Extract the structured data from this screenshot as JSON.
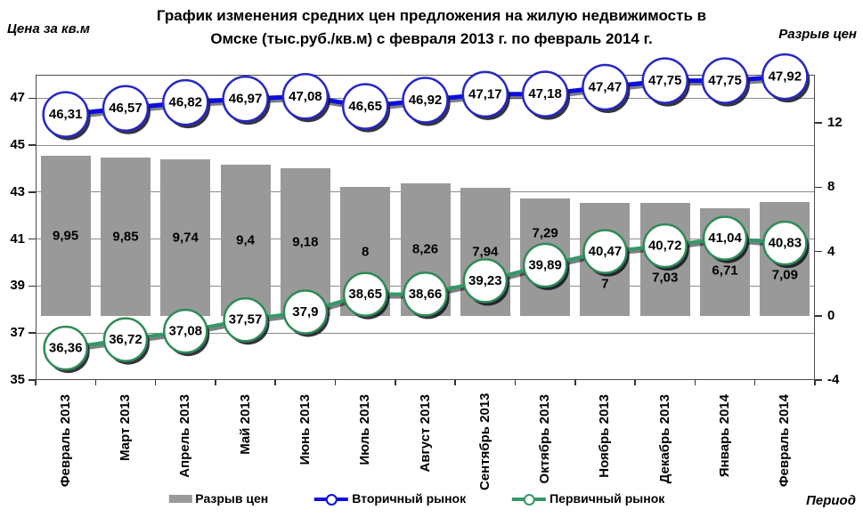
{
  "header": {
    "title_line1": "График изменения средних цен предложения на жилую недвижимость в",
    "title_line2": "Омске (тыс.руб./кв.м) с февраля 2013 г. по февраль 2014  г.",
    "left_axis_caption": "Цена за кв.м",
    "right_axis_caption": "Разрыв цен"
  },
  "footer": {
    "x_axis_caption": "Период"
  },
  "legend": [
    {
      "label": "Разрыв цен",
      "type": "bar"
    },
    {
      "label": "Вторичный рынок",
      "type": "line"
    },
    {
      "label": "Первичный рынок",
      "type": "line"
    }
  ],
  "colors": {
    "bar": "#999999",
    "secondary_line": "#0d0de0",
    "secondary_marker_border": "#2727c4",
    "primary_line": "#339966",
    "primary_marker_border": "#2e8b57",
    "gridline": "#8c8c8c",
    "shadow": "#10101e"
  },
  "chart_data": {
    "type": "combo",
    "categories": [
      "Февраль 2013",
      "Март 2013",
      "Апрель 2013",
      "Май 2013",
      "Июнь 2013",
      "Июль 2013",
      "Август 2013",
      "Сентябрь 2013",
      "Октябрь 2013",
      "Ноябрь 2013",
      "Декабрь 2013",
      "Январь 2014",
      "Февраль 2014"
    ],
    "series": [
      {
        "name": "Разрыв цен",
        "type": "bar",
        "axis": "right",
        "values": [
          9.95,
          9.85,
          9.74,
          9.4,
          9.18,
          8,
          8.26,
          7.94,
          7.29,
          7,
          7.03,
          6.71,
          7.09
        ]
      },
      {
        "name": "Вторичный рынок",
        "type": "line",
        "axis": "left",
        "values": [
          46.31,
          46.57,
          46.82,
          46.97,
          47.08,
          46.65,
          46.92,
          47.17,
          47.18,
          47.47,
          47.75,
          47.75,
          47.92
        ]
      },
      {
        "name": "Первичный рынок",
        "type": "line",
        "axis": "left",
        "values": [
          36.36,
          36.72,
          37.08,
          37.57,
          37.9,
          38.65,
          38.66,
          39.23,
          39.89,
          40.47,
          40.72,
          41.04,
          40.83
        ]
      }
    ],
    "left_axis": {
      "min": 35,
      "max": 48,
      "ticks": [
        35,
        37,
        39,
        41,
        43,
        45,
        47
      ]
    },
    "right_axis": {
      "min": -4,
      "max": 15,
      "ticks": [
        -4,
        0,
        4,
        8,
        12
      ]
    },
    "decimal_separator": ",",
    "title": "График изменения средних цен предложения на жилую недвижимость в Омске (тыс.руб./кв.м) с февраля 2013 г. по февраль 2014 г.",
    "layout": {
      "grid": true,
      "legend_position": "bottom",
      "x_labels_rotation": -90,
      "bar_label_pos": [
        "center",
        "center",
        "center",
        "center",
        "center",
        "center",
        "center",
        "center",
        "above",
        "below",
        "below",
        "below",
        "below"
      ]
    }
  }
}
